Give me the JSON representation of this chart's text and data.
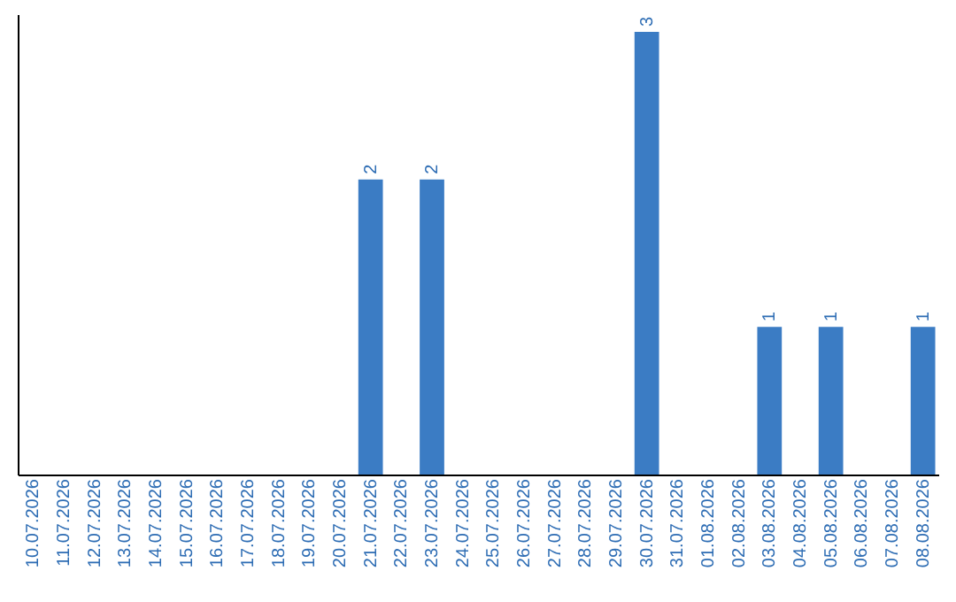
{
  "chart_data": {
    "type": "bar",
    "categories": [
      "10.07.2026",
      "11.07.2026",
      "12.07.2026",
      "13.07.2026",
      "14.07.2026",
      "15.07.2026",
      "16.07.2026",
      "17.07.2026",
      "18.07.2026",
      "19.07.2026",
      "20.07.2026",
      "21.07.2026",
      "22.07.2026",
      "23.07.2026",
      "24.07.2026",
      "25.07.2026",
      "26.07.2026",
      "27.07.2026",
      "28.07.2026",
      "29.07.2026",
      "30.07.2026",
      "31.07.2026",
      "01.08.2026",
      "02.08.2026",
      "03.08.2026",
      "04.08.2026",
      "05.08.2026",
      "06.08.2026",
      "07.08.2026",
      "08.08.2026"
    ],
    "values": [
      null,
      null,
      null,
      null,
      null,
      null,
      null,
      null,
      null,
      null,
      null,
      2,
      null,
      2,
      null,
      null,
      null,
      null,
      null,
      null,
      3,
      null,
      null,
      null,
      1,
      null,
      1,
      null,
      null,
      1
    ],
    "color": "#3b7cc4",
    "data_labels": true,
    "grid": false
  }
}
